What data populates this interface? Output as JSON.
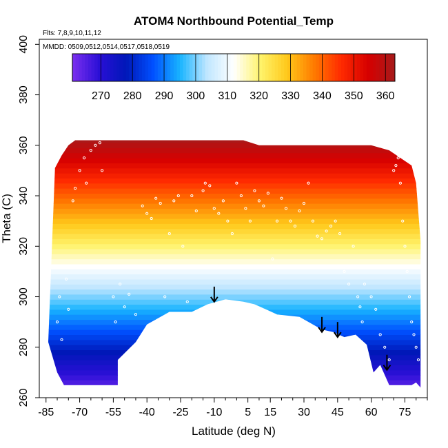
{
  "chart_data": {
    "type": "heatmap",
    "title": "ATOM4 Northbound Potential_Temp",
    "flights_note": "Flts: 7,8,9,10,11,12",
    "dates_note": "MMDD: 0509,0512,0514,0517,0518,0519",
    "xlabel": "Latitude (deg N)",
    "ylabel": "Theta (C)",
    "xlim": [
      -88,
      85
    ],
    "ylim": [
      260,
      402
    ],
    "x_ticks": [
      -85,
      -70,
      -55,
      -40,
      -25,
      -10,
      5,
      15,
      30,
      45,
      60,
      75
    ],
    "x_tick_labels": [
      "-85",
      "-70",
      "-55",
      "-40",
      "-25",
      "-10",
      "5",
      "15",
      "30",
      "45",
      "60",
      "75"
    ],
    "y_ticks": [
      260,
      280,
      300,
      320,
      340,
      360,
      380,
      400
    ],
    "y_tick_labels": [
      "260",
      "280",
      "300",
      "320",
      "340",
      "360",
      "380",
      "400"
    ],
    "colorbar": {
      "min": 261,
      "max": 363,
      "ticks": [
        270,
        280,
        290,
        300,
        310,
        320,
        330,
        340,
        350,
        360
      ],
      "tick_labels": [
        "270",
        "280",
        "290",
        "300",
        "310",
        "320",
        "330",
        "340",
        "350",
        "360"
      ],
      "color_stops": [
        "#7b2ff0",
        "#2a0fd6",
        "#0018b8",
        "#0050ff",
        "#18b4ff",
        "#bfe6ff",
        "#ffffff",
        "#fff36a",
        "#ffc81a",
        "#ff7a00",
        "#ff2a00",
        "#d60000",
        "#a61b1b"
      ]
    },
    "field_top_profile": [
      [
        -81,
        351
      ],
      [
        -78,
        356
      ],
      [
        -75,
        360
      ],
      [
        -72,
        362
      ],
      [
        -60,
        362
      ],
      [
        -20,
        362
      ],
      [
        3,
        362
      ],
      [
        10,
        360
      ],
      [
        60,
        360
      ],
      [
        68,
        358
      ],
      [
        78,
        352
      ],
      [
        80,
        345
      ],
      [
        82,
        322
      ]
    ],
    "field_bottom_profile": [
      [
        -84,
        282
      ],
      [
        -80,
        270
      ],
      [
        -77,
        265
      ],
      [
        -70,
        265
      ],
      [
        -53,
        265
      ],
      [
        -53,
        275
      ],
      [
        -45,
        282
      ],
      [
        -40,
        289
      ],
      [
        -30,
        294
      ],
      [
        -20,
        294
      ],
      [
        -13,
        297
      ],
      [
        -5,
        299
      ],
      [
        3,
        298
      ],
      [
        8,
        297
      ],
      [
        13,
        295
      ],
      [
        18,
        293
      ],
      [
        28,
        292
      ],
      [
        38,
        287
      ],
      [
        43,
        286
      ],
      [
        48,
        284
      ],
      [
        53,
        285
      ],
      [
        58,
        281
      ],
      [
        61,
        270
      ],
      [
        64,
        273
      ],
      [
        68,
        265
      ],
      [
        78,
        265
      ],
      [
        80,
        266
      ],
      [
        82,
        264
      ]
    ],
    "white_points": [
      [
        -80,
        290
      ],
      [
        -79,
        300
      ],
      [
        -78,
        283
      ],
      [
        -76,
        307
      ],
      [
        -75,
        295
      ],
      [
        -73,
        338
      ],
      [
        -72,
        343
      ],
      [
        -70,
        350
      ],
      [
        -68,
        355
      ],
      [
        -67,
        345
      ],
      [
        -65,
        358
      ],
      [
        -63,
        360
      ],
      [
        -61,
        361
      ],
      [
        -60,
        350
      ],
      [
        -55,
        300
      ],
      [
        -54,
        290
      ],
      [
        -52,
        305
      ],
      [
        -50,
        296
      ],
      [
        -48,
        301
      ],
      [
        -45,
        293
      ],
      [
        -42,
        336
      ],
      [
        -40,
        333
      ],
      [
        -38,
        331
      ],
      [
        -36,
        339
      ],
      [
        -34,
        337
      ],
      [
        -32,
        300
      ],
      [
        -30,
        325
      ],
      [
        -28,
        338
      ],
      [
        -26,
        340
      ],
      [
        -24,
        320
      ],
      [
        -22,
        298
      ],
      [
        -20,
        340
      ],
      [
        -18,
        334
      ],
      [
        -15,
        342
      ],
      [
        -14,
        345
      ],
      [
        -12,
        344
      ],
      [
        -10,
        335
      ],
      [
        -8,
        333
      ],
      [
        -6,
        338
      ],
      [
        -4,
        330
      ],
      [
        -2,
        325
      ],
      [
        0,
        345
      ],
      [
        2,
        340
      ],
      [
        4,
        335
      ],
      [
        6,
        330
      ],
      [
        8,
        342
      ],
      [
        10,
        338
      ],
      [
        12,
        336
      ],
      [
        14,
        341
      ],
      [
        16,
        315
      ],
      [
        18,
        330
      ],
      [
        20,
        339
      ],
      [
        22,
        335
      ],
      [
        24,
        330
      ],
      [
        26,
        328
      ],
      [
        28,
        334
      ],
      [
        30,
        337
      ],
      [
        32,
        345
      ],
      [
        34,
        330
      ],
      [
        36,
        324
      ],
      [
        38,
        323
      ],
      [
        40,
        326
      ],
      [
        42,
        328
      ],
      [
        44,
        330
      ],
      [
        46,
        325
      ],
      [
        48,
        310
      ],
      [
        50,
        305
      ],
      [
        52,
        320
      ],
      [
        54,
        300
      ],
      [
        55,
        296
      ],
      [
        56,
        290
      ],
      [
        57,
        305
      ],
      [
        58,
        312
      ],
      [
        60,
        300
      ],
      [
        62,
        295
      ],
      [
        64,
        285
      ],
      [
        66,
        280
      ],
      [
        68,
        275
      ],
      [
        70,
        350
      ],
      [
        71,
        352
      ],
      [
        72,
        355
      ],
      [
        73,
        345
      ],
      [
        74,
        330
      ],
      [
        75,
        320
      ],
      [
        76,
        310
      ],
      [
        77,
        300
      ],
      [
        78,
        290
      ],
      [
        79,
        285
      ],
      [
        80,
        280
      ],
      [
        81,
        275
      ]
    ],
    "arrows": [
      [
        -10,
        304,
        298
      ],
      [
        38,
        292,
        286
      ],
      [
        45,
        290,
        284
      ],
      [
        67,
        277,
        271
      ]
    ]
  }
}
